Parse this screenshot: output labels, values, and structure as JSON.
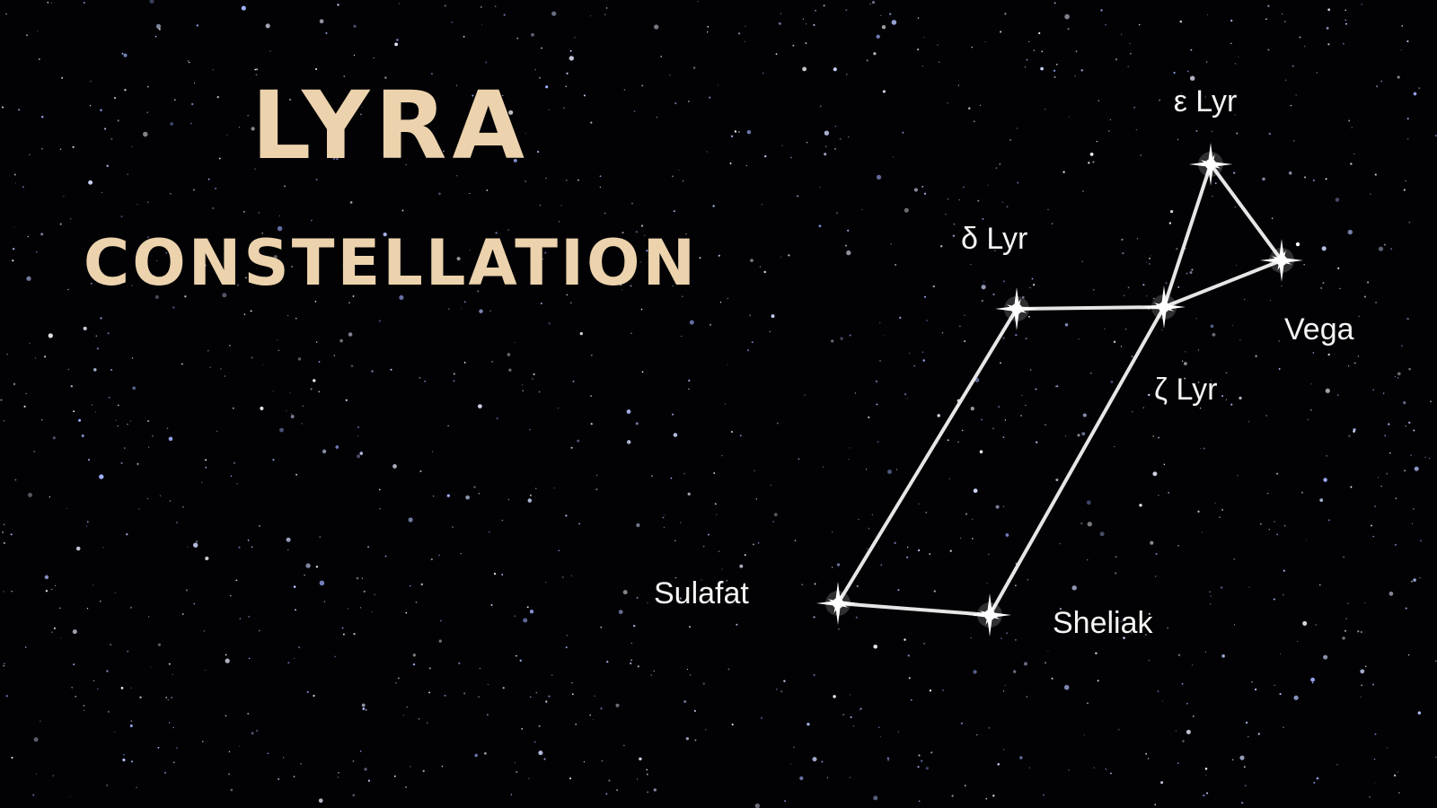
{
  "title": {
    "line1": "LYRA",
    "line2": "CONSTELLATION"
  },
  "colors": {
    "background": "#020205",
    "title": "#ecd3ad",
    "lines": "#e6e6e6",
    "labels": "#f4f4f4"
  },
  "stars": [
    {
      "id": "epsilon",
      "label": "ε Lyr"
    },
    {
      "id": "vega",
      "label": "Vega"
    },
    {
      "id": "zeta",
      "label": "ζ Lyr"
    },
    {
      "id": "delta",
      "label": "δ Lyr"
    },
    {
      "id": "sulafat",
      "label": "Sulafat"
    },
    {
      "id": "sheliak",
      "label": "Sheliak"
    }
  ],
  "connections": [
    [
      "epsilon",
      "vega"
    ],
    [
      "epsilon",
      "zeta"
    ],
    [
      "vega",
      "zeta"
    ],
    [
      "zeta",
      "delta"
    ],
    [
      "delta",
      "sulafat"
    ],
    [
      "sulafat",
      "sheliak"
    ],
    [
      "sheliak",
      "zeta"
    ]
  ]
}
